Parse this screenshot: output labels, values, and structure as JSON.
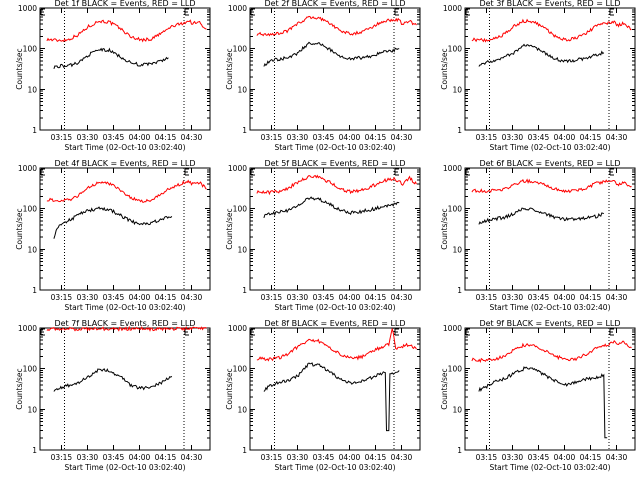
{
  "chart_data": [
    {
      "type": "line",
      "title": "Det 1f BLACK = Events, RED = LLD",
      "xlabel": "Start Time (02-Oct-10 03:02:40)",
      "ylabel": "Counts/sec",
      "xticks": [
        "03:15",
        "03:30",
        "03:45",
        "04:00",
        "04:15",
        "04:30"
      ],
      "yticks": [
        "1",
        "10",
        "100",
        "1000"
      ],
      "yscale": "log",
      "ylim": [
        1,
        1000
      ],
      "xlim_minutes": [
        0,
        98
      ],
      "vlines_minutes": [
        14,
        83
      ],
      "series": [
        {
          "color": "#ff0000",
          "x": [
            4,
            10,
            16,
            22,
            28,
            34,
            40,
            46,
            52,
            58,
            64,
            70,
            76,
            82,
            86,
            88,
            92,
            96
          ],
          "y": [
            170,
            160,
            165,
            220,
            350,
            480,
            450,
            320,
            200,
            165,
            170,
            240,
            350,
            420,
            480,
            420,
            440,
            300
          ]
        },
        {
          "color": "#000000",
          "x": [
            8,
            12,
            16,
            22,
            28,
            34,
            40,
            46,
            52,
            58,
            64,
            70,
            74
          ],
          "y": [
            35,
            38,
            37,
            45,
            70,
            95,
            90,
            65,
            45,
            40,
            42,
            50,
            60
          ]
        }
      ]
    },
    {
      "type": "line",
      "title": "Det 2f BLACK = Events, RED = LLD",
      "xlabel": "Start Time (02-Oct-10 03:02:40)",
      "ylabel": "Counts/sec",
      "xticks": [
        "03:15",
        "03:30",
        "03:45",
        "04:00",
        "04:15",
        "04:30"
      ],
      "yticks": [
        "1",
        "10",
        "100",
        "1000"
      ],
      "yscale": "log",
      "ylim": [
        1,
        1000
      ],
      "xlim_minutes": [
        0,
        98
      ],
      "vlines_minutes": [
        14,
        83
      ],
      "series": [
        {
          "color": "#ff0000",
          "x": [
            4,
            10,
            16,
            22,
            28,
            34,
            40,
            46,
            52,
            58,
            64,
            70,
            76,
            82,
            86,
            88,
            92,
            96
          ],
          "y": [
            230,
            220,
            230,
            280,
            420,
            600,
            560,
            420,
            280,
            230,
            250,
            330,
            450,
            520,
            500,
            400,
            470,
            380
          ]
        },
        {
          "color": "#000000",
          "x": [
            8,
            12,
            16,
            22,
            28,
            34,
            40,
            46,
            52,
            58,
            64,
            70,
            76,
            82,
            86
          ],
          "y": [
            40,
            50,
            55,
            60,
            80,
            140,
            130,
            95,
            65,
            55,
            60,
            65,
            80,
            90,
            100
          ]
        }
      ]
    },
    {
      "type": "line",
      "title": "Det 3f BLACK = Events, RED = LLD",
      "xlabel": "Start Time (02-Oct-10 03:02:40)",
      "ylabel": "Counts/sec",
      "xticks": [
        "03:15",
        "03:30",
        "03:45",
        "04:00",
        "04:15",
        "04:30"
      ],
      "yticks": [
        "1",
        "10",
        "100",
        "1000"
      ],
      "yscale": "log",
      "ylim": [
        1,
        1000
      ],
      "xlim_minutes": [
        0,
        98
      ],
      "vlines_minutes": [
        14,
        83
      ],
      "series": [
        {
          "color": "#ff0000",
          "x": [
            4,
            10,
            16,
            22,
            28,
            34,
            40,
            46,
            52,
            58,
            64,
            70,
            76,
            82,
            86,
            88,
            92,
            96
          ],
          "y": [
            170,
            160,
            170,
            220,
            350,
            480,
            450,
            320,
            200,
            165,
            180,
            250,
            360,
            430,
            440,
            380,
            420,
            300
          ]
        },
        {
          "color": "#000000",
          "x": [
            8,
            12,
            16,
            22,
            28,
            34,
            40,
            46,
            52,
            58,
            64,
            70,
            76,
            80
          ],
          "y": [
            40,
            45,
            50,
            60,
            80,
            120,
            110,
            80,
            55,
            50,
            52,
            60,
            70,
            80
          ]
        }
      ]
    },
    {
      "type": "line",
      "title": "Det 4f BLACK = Events, RED = LLD",
      "xlabel": "Start Time (02-Oct-10 03:02:40)",
      "ylabel": "Counts/sec",
      "xticks": [
        "03:15",
        "03:30",
        "03:45",
        "04:00",
        "04:15",
        "04:30"
      ],
      "yticks": [
        "1",
        "10",
        "100",
        "1000"
      ],
      "yscale": "log",
      "ylim": [
        1,
        1000
      ],
      "xlim_minutes": [
        0,
        98
      ],
      "vlines_minutes": [
        14,
        83
      ],
      "series": [
        {
          "color": "#ff0000",
          "x": [
            4,
            10,
            16,
            22,
            28,
            34,
            40,
            46,
            52,
            58,
            64,
            70,
            76,
            82,
            86,
            88,
            92,
            96
          ],
          "y": [
            170,
            150,
            160,
            210,
            330,
            450,
            420,
            300,
            190,
            150,
            160,
            230,
            330,
            420,
            460,
            400,
            450,
            300
          ]
        },
        {
          "color": "#000000",
          "x": [
            8,
            10,
            14,
            18,
            22,
            28,
            34,
            40,
            46,
            52,
            58,
            64,
            70,
            76
          ],
          "y": [
            20,
            35,
            45,
            55,
            70,
            90,
            100,
            95,
            70,
            50,
            40,
            45,
            55,
            65
          ]
        }
      ]
    },
    {
      "type": "line",
      "title": "Det 5f BLACK = Events, RED = LLD",
      "xlabel": "Start Time (02-Oct-10 03:02:40)",
      "ylabel": "Counts/sec",
      "xticks": [
        "03:15",
        "03:30",
        "03:45",
        "04:00",
        "04:15",
        "04:30"
      ],
      "yticks": [
        "1",
        "10",
        "100",
        "1000"
      ],
      "yscale": "log",
      "ylim": [
        1,
        1000
      ],
      "xlim_minutes": [
        0,
        98
      ],
      "vlines_minutes": [
        14,
        83
      ],
      "series": [
        {
          "color": "#ff0000",
          "x": [
            4,
            10,
            16,
            22,
            28,
            34,
            40,
            46,
            52,
            58,
            64,
            70,
            76,
            82,
            86,
            88,
            92,
            96
          ],
          "y": [
            260,
            250,
            260,
            320,
            450,
            620,
            590,
            450,
            300,
            260,
            280,
            350,
            470,
            550,
            480,
            400,
            560,
            400
          ]
        },
        {
          "color": "#000000",
          "x": [
            8,
            12,
            16,
            22,
            28,
            34,
            40,
            46,
            52,
            58,
            64,
            70,
            76,
            82,
            86
          ],
          "y": [
            65,
            75,
            80,
            90,
            120,
            180,
            170,
            130,
            90,
            80,
            85,
            95,
            110,
            120,
            140
          ]
        }
      ]
    },
    {
      "type": "line",
      "title": "Det 6f BLACK = Events, RED = LLD",
      "xlabel": "Start Time (02-Oct-10 03:02:40)",
      "ylabel": "Counts/sec",
      "xticks": [
        "03:15",
        "03:30",
        "03:45",
        "04:00",
        "04:15",
        "04:30"
      ],
      "yticks": [
        "1",
        "10",
        "100",
        "1000"
      ],
      "yscale": "log",
      "ylim": [
        1,
        1000
      ],
      "xlim_minutes": [
        0,
        98
      ],
      "vlines_minutes": [
        14,
        83
      ],
      "series": [
        {
          "color": "#ff0000",
          "x": [
            4,
            10,
            16,
            22,
            28,
            34,
            40,
            46,
            52,
            58,
            64,
            70,
            76,
            82,
            86,
            88,
            92,
            96
          ],
          "y": [
            280,
            270,
            275,
            300,
            380,
            480,
            460,
            380,
            300,
            270,
            280,
            330,
            420,
            480,
            460,
            400,
            430,
            350
          ]
        },
        {
          "color": "#000000",
          "x": [
            8,
            12,
            16,
            22,
            28,
            34,
            40,
            46,
            52,
            58,
            64,
            70,
            76,
            80
          ],
          "y": [
            45,
            50,
            55,
            60,
            75,
            100,
            95,
            75,
            60,
            55,
            55,
            60,
            65,
            75
          ]
        }
      ]
    },
    {
      "type": "line",
      "title": "Det 7f BLACK = Events, RED = LLD",
      "xlabel": "Start Time (02-Oct-10 03:02:40)",
      "ylabel": "Counts/sec",
      "xticks": [
        "03:15",
        "03:30",
        "03:45",
        "04:00",
        "04:15",
        "04:30"
      ],
      "yticks": [
        "1",
        "10",
        "100",
        "1000"
      ],
      "yscale": "log",
      "ylim": [
        1,
        1000
      ],
      "xlim_minutes": [
        0,
        98
      ],
      "vlines_minutes": [
        14,
        83
      ],
      "series": [
        {
          "color": "#ff0000",
          "x": [
            4,
            10,
            16,
            22,
            28,
            34,
            40,
            46,
            52,
            58,
            64,
            70,
            76,
            82,
            86,
            88,
            92,
            96
          ],
          "y": [
            950,
            930,
            960,
            940,
            950,
            960,
            950,
            940,
            960,
            950,
            940,
            950,
            960,
            950,
            980,
            1000,
            1000,
            1000
          ]
        },
        {
          "color": "#000000",
          "x": [
            8,
            12,
            16,
            22,
            28,
            34,
            40,
            46,
            52,
            58,
            64,
            70,
            76
          ],
          "y": [
            30,
            33,
            38,
            45,
            65,
            95,
            90,
            65,
            40,
            33,
            35,
            45,
            65
          ]
        }
      ]
    },
    {
      "type": "line",
      "title": "Det 8f BLACK = Events, RED = LLD",
      "xlabel": "Start Time (02-Oct-10 03:02:40)",
      "ylabel": "Counts/sec",
      "xticks": [
        "03:15",
        "03:30",
        "03:45",
        "04:00",
        "04:15",
        "04:30"
      ],
      "yticks": [
        "1",
        "10",
        "100",
        "1000"
      ],
      "yscale": "log",
      "ylim": [
        1,
        1000
      ],
      "xlim_minutes": [
        0,
        98
      ],
      "vlines_minutes": [
        14,
        83
      ],
      "series": [
        {
          "color": "#ff0000",
          "x": [
            4,
            10,
            16,
            22,
            28,
            34,
            40,
            46,
            52,
            58,
            64,
            70,
            76,
            80,
            82,
            84,
            86,
            88,
            92,
            96
          ],
          "y": [
            180,
            170,
            180,
            230,
            360,
            500,
            470,
            340,
            220,
            180,
            190,
            260,
            340,
            400,
            1000,
            300,
            320,
            350,
            400,
            300
          ]
        },
        {
          "color": "#000000",
          "x": [
            8,
            12,
            16,
            22,
            28,
            34,
            40,
            46,
            52,
            58,
            64,
            70,
            74,
            78,
            80,
            82,
            84,
            86
          ],
          "y": [
            30,
            38,
            45,
            50,
            70,
            130,
            120,
            85,
            55,
            45,
            50,
            60,
            70,
            80,
            3,
            75,
            80,
            90
          ]
        }
      ]
    },
    {
      "type": "line",
      "title": "Det 9f BLACK = Events, RED = LLD",
      "xlabel": "Start Time (02-Oct-10 03:02:40)",
      "ylabel": "Counts/sec",
      "xticks": [
        "03:15",
        "03:30",
        "03:45",
        "04:00",
        "04:15",
        "04:30"
      ],
      "yticks": [
        "1",
        "10",
        "100",
        "1000"
      ],
      "yscale": "log",
      "ylim": [
        1,
        1000
      ],
      "xlim_minutes": [
        0,
        98
      ],
      "vlines_minutes": [
        14,
        83
      ],
      "series": [
        {
          "color": "#ff0000",
          "x": [
            4,
            10,
            16,
            22,
            28,
            34,
            40,
            46,
            52,
            58,
            64,
            70,
            76,
            82,
            86,
            88,
            92,
            96
          ],
          "y": [
            170,
            160,
            165,
            200,
            280,
            380,
            360,
            280,
            200,
            170,
            175,
            230,
            320,
            380,
            460,
            420,
            450,
            330
          ]
        },
        {
          "color": "#000000",
          "x": [
            8,
            12,
            16,
            22,
            28,
            34,
            40,
            46,
            52,
            58,
            64,
            70,
            76,
            80,
            82
          ],
          "y": [
            30,
            35,
            45,
            55,
            75,
            100,
            95,
            70,
            50,
            40,
            45,
            55,
            60,
            70,
            2
          ]
        }
      ]
    }
  ]
}
